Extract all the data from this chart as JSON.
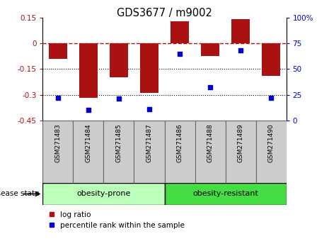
{
  "title": "GDS3677 / m9002",
  "samples": [
    "GSM271483",
    "GSM271484",
    "GSM271485",
    "GSM271487",
    "GSM271486",
    "GSM271488",
    "GSM271489",
    "GSM271490"
  ],
  "log_ratio": [
    -0.09,
    -0.32,
    -0.2,
    -0.29,
    0.13,
    -0.075,
    0.14,
    -0.19
  ],
  "percentile_rank": [
    22,
    10,
    21,
    11,
    65,
    32,
    68,
    22
  ],
  "groups": [
    {
      "label": "obesity-prone",
      "count": 4,
      "color": "#bbffbb"
    },
    {
      "label": "obesity-resistant",
      "count": 4,
      "color": "#44dd44"
    }
  ],
  "bar_color": "#aa1111",
  "dot_color": "#0000cc",
  "left_ylim": [
    -0.45,
    0.15
  ],
  "left_yticks": [
    -0.45,
    -0.3,
    -0.15,
    0,
    0.15
  ],
  "right_ylim": [
    0,
    100
  ],
  "right_yticks": [
    0,
    25,
    50,
    75,
    100
  ],
  "dotted_lines": [
    -0.15,
    -0.3
  ],
  "background_color": "#ffffff",
  "sample_box_color": "#cccccc",
  "legend_log_ratio": "log ratio",
  "legend_percentile": "percentile rank within the sample",
  "disease_state_label": "disease state"
}
